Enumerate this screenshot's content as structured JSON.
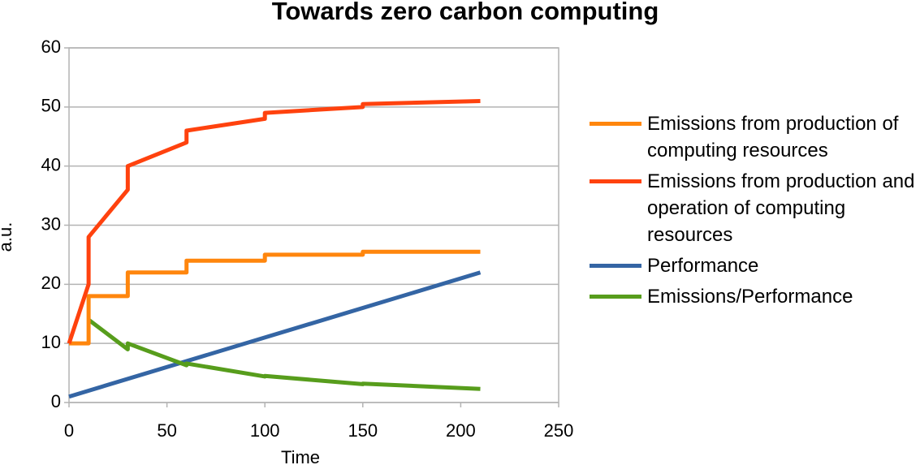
{
  "chart_data": {
    "type": "line",
    "title": "Towards zero carbon computing",
    "x_label": "Time",
    "y_label": "a.u.",
    "xlim": [
      0,
      250
    ],
    "xticks": [
      0,
      50,
      100,
      150,
      200,
      250
    ],
    "ylim": [
      0,
      60
    ],
    "yticks": [
      0,
      10,
      20,
      30,
      40,
      50,
      60
    ],
    "grid": true,
    "legend": "right",
    "series": [
      {
        "name": "Emissions from production of computing resources",
        "color": "#ff860d",
        "x": [
          0,
          10,
          10,
          30,
          30,
          60,
          60,
          100,
          100,
          150,
          150,
          210
        ],
        "values": [
          10,
          10,
          18,
          18,
          22,
          22,
          24,
          24,
          25,
          25,
          25.5,
          25.5
        ]
      },
      {
        "name": "Emissions from production and operation of computing resources",
        "color": "#ff420e",
        "x": [
          0,
          10,
          10,
          30,
          30,
          60,
          60,
          100,
          100,
          150,
          150,
          210
        ],
        "values": [
          10,
          20,
          28,
          36,
          40,
          44,
          46,
          48,
          49,
          50,
          50.5,
          51
        ]
      },
      {
        "name": "Performance",
        "color": "#3465a4",
        "x": [
          0,
          210
        ],
        "values": [
          1,
          22
        ]
      },
      {
        "name": "Emissions/Performance",
        "color": "#579d1c",
        "x": [
          10,
          30,
          30,
          60,
          60,
          100,
          100,
          150,
          150,
          210
        ],
        "values": [
          14,
          9,
          10,
          6.3,
          6.6,
          4.4,
          4.5,
          3.1,
          3.2,
          2.3
        ]
      }
    ]
  }
}
